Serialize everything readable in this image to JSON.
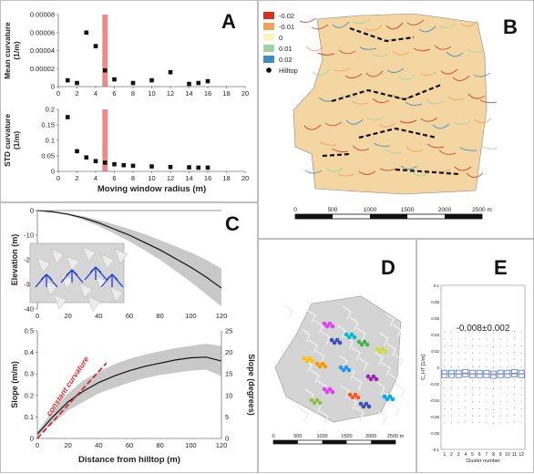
{
  "panel_labels": {
    "a": "A",
    "b": "B",
    "c": "C",
    "d": "D",
    "e": "E"
  },
  "chart_data": [
    {
      "id": "A-top",
      "type": "scatter",
      "panel": "A",
      "ylabel": "Mean curvature (1/m)",
      "ylabel_line1": "Mean curvature",
      "ylabel_line2": "(1/m)",
      "x": [
        1,
        2,
        3,
        4,
        5,
        6,
        8,
        10,
        12,
        14,
        15,
        16
      ],
      "y": [
        7e-06,
        4e-06,
        6e-05,
        4.5e-05,
        1.8e-05,
        8e-06,
        4e-06,
        7e-06,
        1.6e-05,
        3e-06,
        4e-06,
        6e-06
      ],
      "xlim": [
        0,
        20
      ],
      "ylim": [
        0,
        8e-05
      ],
      "xticks": [
        0,
        2,
        4,
        6,
        8,
        10,
        12,
        14,
        16,
        18,
        20
      ],
      "yticks": [
        "0",
        "0.00002",
        "0.00004",
        "0.00006",
        "0.00008"
      ],
      "highlight_x": 5,
      "highlight_color": "#ef8a8a"
    },
    {
      "id": "A-bottom",
      "type": "scatter",
      "panel": "A",
      "ylabel": "STD curvature (1/m)",
      "ylabel_line1": "STD curvature",
      "ylabel_line2": "(1/m)",
      "xlabel": "Moving window radius (m)",
      "x": [
        1,
        2,
        3,
        4,
        5,
        6,
        7,
        8,
        10,
        12,
        14,
        15,
        16
      ],
      "y": [
        0.175,
        0.065,
        0.045,
        0.033,
        0.028,
        0.023,
        0.02,
        0.018,
        0.016,
        0.014,
        0.013,
        0.012,
        0.012
      ],
      "xlim": [
        0,
        20
      ],
      "ylim": [
        0,
        0.2
      ],
      "xticks": [
        0,
        2,
        4,
        6,
        8,
        10,
        12,
        14,
        16,
        18,
        20
      ],
      "yticks": [
        "0",
        "0.05",
        "0.1",
        "0.15",
        "0.2"
      ],
      "highlight_x": 5,
      "highlight_color": "#ef8a8a"
    },
    {
      "id": "C-top",
      "type": "line",
      "panel": "C",
      "ylabel": "Elevation (m)",
      "x": [
        0,
        10,
        20,
        30,
        40,
        50,
        60,
        70,
        80,
        90,
        100,
        110,
        120
      ],
      "y": [
        0,
        -0.5,
        -1.5,
        -3,
        -5,
        -7.5,
        -10,
        -13,
        -16,
        -19.5,
        -23,
        -27,
        -31.5
      ],
      "band_upper": [
        0,
        -0.4,
        -1.2,
        -2.3,
        -3.8,
        -5.6,
        -7.5,
        -9.6,
        -12,
        -14.5,
        -17,
        -20,
        -23.5
      ],
      "band_lower": [
        0,
        -0.6,
        -1.8,
        -3.8,
        -6.3,
        -9.3,
        -12.5,
        -16.2,
        -20,
        -24.5,
        -29,
        -34,
        -39
      ],
      "xlim": [
        0,
        120
      ],
      "ylim": [
        -40,
        0
      ],
      "xticks": [
        "0",
        "20",
        "40",
        "60",
        "80",
        "100",
        "120"
      ],
      "yticks": [
        "0",
        "-10",
        "-20",
        "-30",
        "-40"
      ]
    },
    {
      "id": "C-bottom",
      "type": "line",
      "panel": "C",
      "xlabel": "Distance from hilltop (m)",
      "ylabel": "Slope (m/m)",
      "ylabel_right": "Slope (degrees)",
      "x": [
        0,
        10,
        20,
        30,
        40,
        50,
        60,
        70,
        80,
        90,
        100,
        110,
        120
      ],
      "y": [
        0.02,
        0.1,
        0.17,
        0.22,
        0.26,
        0.29,
        0.315,
        0.335,
        0.35,
        0.365,
        0.375,
        0.378,
        0.36
      ],
      "band_upper": [
        0.03,
        0.13,
        0.21,
        0.27,
        0.31,
        0.345,
        0.37,
        0.39,
        0.405,
        0.42,
        0.43,
        0.44,
        0.43
      ],
      "band_lower": [
        0.01,
        0.07,
        0.13,
        0.17,
        0.21,
        0.235,
        0.26,
        0.28,
        0.295,
        0.305,
        0.315,
        0.32,
        0.29
      ],
      "constant_curvature_label": "constant curvature",
      "constant_curvature_x": [
        0,
        45
      ],
      "constant_curvature_y": [
        0,
        0.35
      ],
      "xlim": [
        0,
        120
      ],
      "ylim": [
        0,
        0.5
      ],
      "xticks": [
        "0",
        "20",
        "40",
        "60",
        "80",
        "100",
        "120"
      ],
      "yticks": [
        "0",
        "0.1",
        "0.2",
        "0.3",
        "0.4",
        "0.5"
      ],
      "yticks_right": [
        "0",
        "5",
        "10",
        "15",
        "20",
        "25"
      ]
    },
    {
      "id": "E",
      "type": "boxplot",
      "panel": "E",
      "xlabel": "Cluster number",
      "ylabel": "C_HT [1/m]",
      "annotation": "-0.008±0.002",
      "categories": [
        "1",
        "2",
        "3",
        "4",
        "5",
        "6",
        "7",
        "8",
        "9",
        "10",
        "11",
        "12"
      ],
      "medians": [
        -0.008,
        -0.008,
        -0.008,
        -0.007,
        -0.008,
        -0.008,
        -0.008,
        -0.009,
        -0.008,
        -0.008,
        -0.007,
        -0.008
      ],
      "ylim": [
        -0.1,
        0.1
      ],
      "yticks": [
        "0.1",
        "0.08",
        "0.06",
        "0.04",
        "0.02",
        "0",
        "-0.02",
        "-0.04",
        "-0.06",
        "-0.08",
        "-0.1"
      ]
    }
  ],
  "map_b": {
    "legend": [
      {
        "label": "-0.02",
        "color": "#d7301f"
      },
      {
        "label": "-0.01",
        "color": "#f4a15d"
      },
      {
        "label": "0",
        "color": "#fcf5c2"
      },
      {
        "label": "0.01",
        "color": "#9fd3a4"
      },
      {
        "label": "0.02",
        "color": "#3a8fbf"
      },
      {
        "label": "Hilltop",
        "color": "#000000"
      }
    ],
    "scale": [
      "0",
      "500",
      "1000",
      "1500",
      "2000",
      "2500 m"
    ]
  },
  "map_d": {
    "scale": [
      "0",
      "500",
      "1000",
      "1500",
      "2000",
      "2500 m"
    ]
  }
}
